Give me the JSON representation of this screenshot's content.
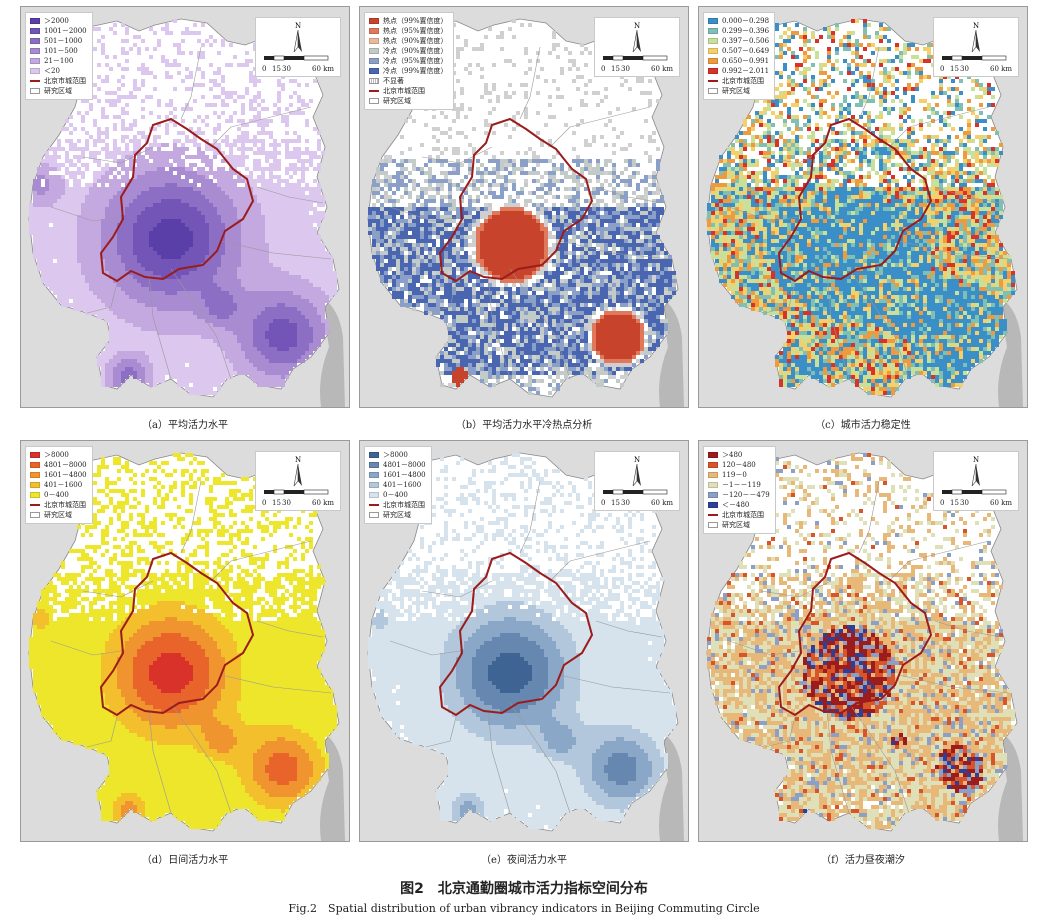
{
  "figure": {
    "title": "图2　北京通勤圈城市活力指标空间分布",
    "subtitle": "Fig.2　Spatial distribution of urban vibrancy indicators in Beijing Commuting Circle"
  },
  "scale": {
    "north": "N",
    "ticks": [
      "0",
      "15",
      "30",
      "60 km"
    ]
  },
  "panels": [
    {
      "id": "a",
      "caption": "（a）平均活力水平",
      "legend": [
        {
          "type": "swatch",
          "color": "#5b3fa8",
          "label": "＞2000"
        },
        {
          "type": "swatch",
          "color": "#7255b6",
          "label": "1001－2000"
        },
        {
          "type": "swatch",
          "color": "#8c6fc4",
          "label": "501－1000"
        },
        {
          "type": "swatch",
          "color": "#a98bd2",
          "label": "101－500"
        },
        {
          "type": "swatch",
          "color": "#c4a8e0",
          "label": "21－100"
        },
        {
          "type": "swatch",
          "color": "#dcc8ee",
          "label": "＜20"
        },
        {
          "type": "line",
          "label": "北京市城范围"
        },
        {
          "type": "area",
          "label": "研究区域"
        }
      ]
    },
    {
      "id": "b",
      "caption": "（b）平均活力水平冷热点分析",
      "legend": [
        {
          "type": "swatch",
          "color": "#c8432b",
          "label": "热点（99%置信度）"
        },
        {
          "type": "swatch",
          "color": "#e0795c",
          "label": "热点（95%置信度）"
        },
        {
          "type": "swatch",
          "color": "#ecb89a",
          "label": "热点（90%置信度）"
        },
        {
          "type": "swatch",
          "color": "#c3cbc9",
          "label": "冷点（90%置信度）"
        },
        {
          "type": "swatch",
          "color": "#8aa0c8",
          "label": "冷点（95%置信度）"
        },
        {
          "type": "swatch",
          "color": "#4a66b0",
          "label": "冷点（99%置信度）"
        },
        {
          "type": "hatch",
          "label": "不显著"
        },
        {
          "type": "line",
          "label": "北京市城范围"
        },
        {
          "type": "area",
          "label": "研究区域"
        }
      ]
    },
    {
      "id": "c",
      "caption": "（c）城市活力稳定性",
      "legend": [
        {
          "type": "swatch",
          "color": "#3a8fc9",
          "label": "0.000－0.298"
        },
        {
          "type": "swatch",
          "color": "#7fbfb4",
          "label": "0.299－0.396"
        },
        {
          "type": "swatch",
          "color": "#c9e09a",
          "label": "0.397－0.506"
        },
        {
          "type": "swatch",
          "color": "#f5cf6a",
          "label": "0.507－0.649"
        },
        {
          "type": "swatch",
          "color": "#f09a3e",
          "label": "0.650－0.991"
        },
        {
          "type": "swatch",
          "color": "#d8322a",
          "label": "0.992－2.011"
        },
        {
          "type": "line",
          "label": "北京市城范围"
        },
        {
          "type": "area",
          "label": "研究区域"
        }
      ]
    },
    {
      "id": "d",
      "caption": "（d）日间活力水平",
      "legend": [
        {
          "type": "swatch",
          "color": "#d8322a",
          "label": "＞8000"
        },
        {
          "type": "swatch",
          "color": "#e8642a",
          "label": "4801－8000"
        },
        {
          "type": "swatch",
          "color": "#f09430",
          "label": "1601－4800"
        },
        {
          "type": "swatch",
          "color": "#f3bf2c",
          "label": "401－1600"
        },
        {
          "type": "swatch",
          "color": "#ede62a",
          "label": "0－400"
        },
        {
          "type": "line",
          "label": "北京市城范围"
        },
        {
          "type": "area",
          "label": "研究区域"
        }
      ]
    },
    {
      "id": "e",
      "caption": "（e）夜间活力水平",
      "legend": [
        {
          "type": "swatch",
          "color": "#3e6493",
          "label": "＞8000"
        },
        {
          "type": "swatch",
          "color": "#6587b0",
          "label": "4801－8000"
        },
        {
          "type": "swatch",
          "color": "#8aa7c7",
          "label": "1601－4800"
        },
        {
          "type": "swatch",
          "color": "#b2c7dc",
          "label": "401－1600"
        },
        {
          "type": "swatch",
          "color": "#d6e2ec",
          "label": "0－400"
        },
        {
          "type": "line",
          "label": "北京市城范围"
        },
        {
          "type": "area",
          "label": "研究区域"
        }
      ]
    },
    {
      "id": "f",
      "caption": "（f）活力昼夜潮汐",
      "legend": [
        {
          "type": "swatch",
          "color": "#9b1c1c",
          "label": "＞480"
        },
        {
          "type": "swatch",
          "color": "#d8552a",
          "label": "120－480"
        },
        {
          "type": "swatch",
          "color": "#e8b878",
          "label": "119－0"
        },
        {
          "type": "swatch",
          "color": "#dfe0b8",
          "label": "－1－－119"
        },
        {
          "type": "swatch",
          "color": "#8aa0c8",
          "label": "－120－－479"
        },
        {
          "type": "swatch",
          "color": "#2e3f9a",
          "label": "＜－480"
        },
        {
          "type": "line",
          "label": "北京市城范围"
        },
        {
          "type": "area",
          "label": "研究区域"
        }
      ]
    }
  ]
}
